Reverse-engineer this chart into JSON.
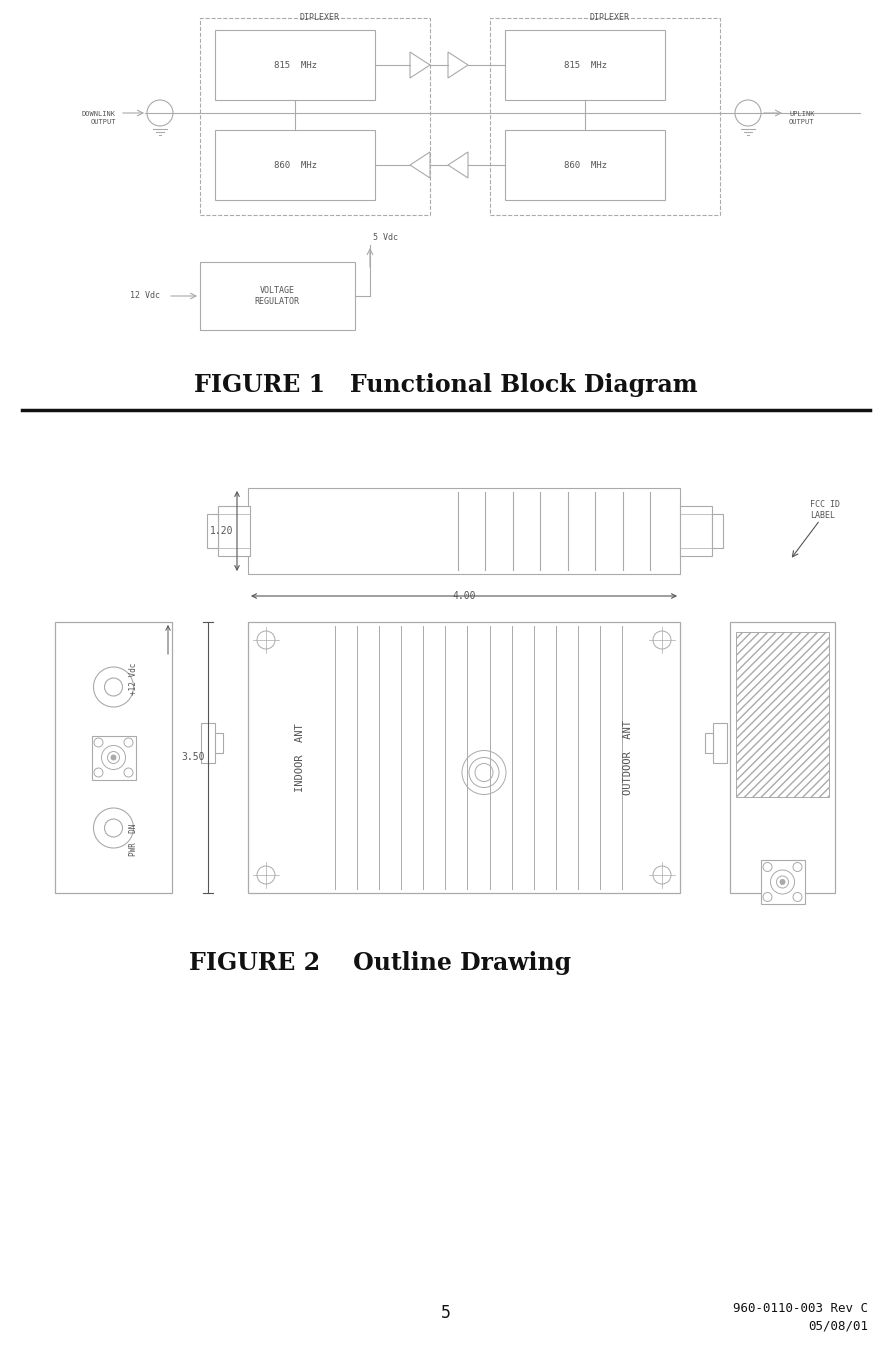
{
  "bg_color": "#ffffff",
  "line_color": "#aaaaaa",
  "dark_line": "#555555",
  "black": "#111111",
  "figure1_caption": "FIGURE 1   Functional Block Diagram",
  "figure2_caption": "FIGURE 2    Outline Drawing",
  "page_number": "5",
  "doc_ref_line1": "960-0110-003 Rev C",
  "doc_ref_line2": "05/08/01"
}
